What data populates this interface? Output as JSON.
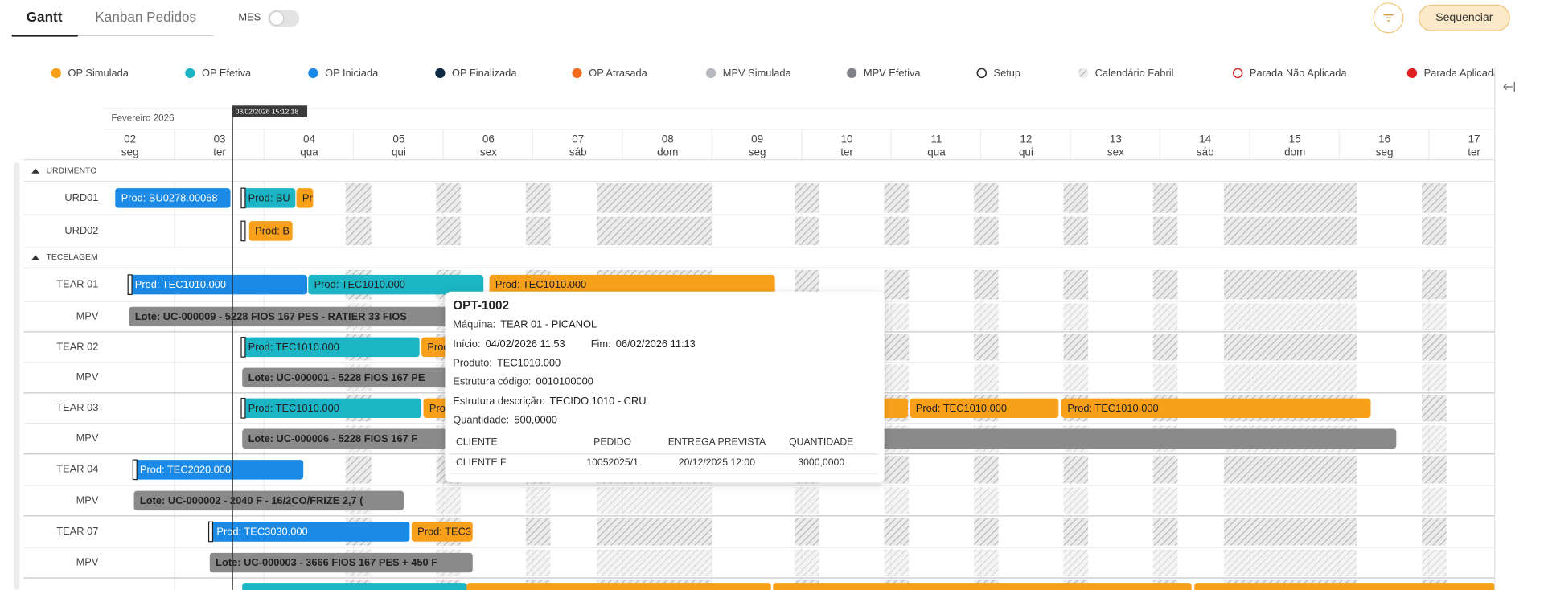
{
  "tabs": [
    "Gantt",
    "Kanban Pedidos"
  ],
  "toggle_label": "MES",
  "action_button": "Sequenciar",
  "legend": [
    {
      "label": "OP Simulada",
      "color": "#f9a01b"
    },
    {
      "label": "OP Efetiva",
      "color": "#1bb5c5"
    },
    {
      "label": "OP Iniciada",
      "color": "#1a8ae6"
    },
    {
      "label": "OP Finalizada",
      "color": "#0d2b45"
    },
    {
      "label": "OP Atrasada",
      "color": "#f26a1b"
    },
    {
      "label": "MPV Simulada",
      "color": "#b5b8bd"
    },
    {
      "label": "MPV Efetiva",
      "color": "#7f8286"
    },
    {
      "label": "Setup",
      "color": "#333333",
      "style": "ring"
    },
    {
      "label": "Calendário Fabril",
      "color": "#bdbdbd",
      "style": "hatch"
    },
    {
      "label": "Parada Não Aplicada",
      "color": "#d32f2f",
      "style": "ring"
    },
    {
      "label": "Parada Aplicada",
      "color": "#e02020"
    }
  ],
  "timeline": {
    "month": "Fevereiro 2026",
    "now": "03/02/2026 15:12:18",
    "days": [
      {
        "day": "02",
        "weekday": "seg"
      },
      {
        "day": "03",
        "weekday": "ter"
      },
      {
        "day": "04",
        "weekday": "qua"
      },
      {
        "day": "05",
        "weekday": "qui"
      },
      {
        "day": "06",
        "weekday": "sex"
      },
      {
        "day": "07",
        "weekday": "sáb"
      },
      {
        "day": "08",
        "weekday": "dom"
      },
      {
        "day": "09",
        "weekday": "seg"
      },
      {
        "day": "10",
        "weekday": "ter"
      },
      {
        "day": "11",
        "weekday": "qua"
      },
      {
        "day": "12",
        "weekday": "qui"
      },
      {
        "day": "13",
        "weekday": "sex"
      },
      {
        "day": "14",
        "weekday": "sáb"
      },
      {
        "day": "15",
        "weekday": "dom"
      },
      {
        "day": "16",
        "weekday": "seg"
      },
      {
        "day": "17",
        "weekday": "ter"
      }
    ]
  },
  "groups": [
    {
      "name": "URDIMENTO",
      "rows": [
        {
          "label": "URD01",
          "bars": [
            {
              "text": "Prod: BU0278.00068",
              "color": "#1a8ae6"
            },
            {
              "text": "Prod: BU",
              "color": "#1bb5c5"
            },
            {
              "text": "Pr",
              "color": "#f9a01b"
            }
          ]
        },
        {
          "label": "URD02",
          "bars": [
            {
              "text": "Prod: B",
              "color": "#f9a01b"
            }
          ]
        }
      ]
    },
    {
      "name": "TECELAGEM",
      "rows": [
        {
          "label": "TEAR 01",
          "bars": [
            {
              "text": "Prod: TEC1010.000",
              "color": "#1a8ae6"
            },
            {
              "text": "Prod: TEC1010.000",
              "color": "#1bb5c5"
            },
            {
              "text": "Prod: TEC1010.000",
              "color": "#f9a01b"
            }
          ]
        },
        {
          "label": "MPV",
          "bars": [
            {
              "text": "Lote: UC-000009 - 5228 FIOS 167 PES - RATIER 33 FIOS",
              "color": "#8a8a8a"
            }
          ]
        },
        {
          "label": "TEAR 02",
          "bars": [
            {
              "text": "Prod: TEC1010.000",
              "color": "#1bb5c5"
            },
            {
              "text": "Prod",
              "color": "#f9a01b"
            }
          ]
        },
        {
          "label": "MPV",
          "bars": [
            {
              "text": "Lote: UC-000001 - 5228 FIOS 167 PE",
              "color": "#8a8a8a"
            }
          ]
        },
        {
          "label": "TEAR 03",
          "bars": [
            {
              "text": "Prod: TEC1010.000",
              "color": "#1bb5c5"
            },
            {
              "text": "Pro",
              "color": "#f9a01b"
            },
            {
              "text": "Prod: TEC1010.000",
              "color": "#f9a01b"
            },
            {
              "text": "Prod: TEC1010.000",
              "color": "#f9a01b"
            }
          ]
        },
        {
          "label": "MPV",
          "bars": [
            {
              "text": "Lote: UC-000006 - 5228 FIOS 167 F",
              "color": "#8a8a8a"
            }
          ]
        },
        {
          "label": "TEAR 04",
          "bars": [
            {
              "text": "Prod: TEC2020.000",
              "color": "#1a8ae6"
            }
          ]
        },
        {
          "label": "MPV",
          "bars": [
            {
              "text": "Lote: UC-000002 - 2040 F - 16/2CO/FRIZE 2,7 (",
              "color": "#8a8a8a"
            }
          ]
        },
        {
          "label": "TEAR 07",
          "bars": [
            {
              "text": "Prod: TEC3030.000",
              "color": "#1a8ae6"
            },
            {
              "text": "Prod: TEC3",
              "color": "#f9a01b"
            }
          ]
        },
        {
          "label": "MPV",
          "bars": [
            {
              "text": "Lote: UC-000003 - 3666 FIOS 167 PES + 450 F",
              "color": "#8a8a8a"
            }
          ]
        }
      ]
    }
  ],
  "tooltip": {
    "title": "OPT-1002",
    "fields": [
      {
        "label": "Máquina:",
        "value": "TEAR 01 - PICANOL"
      },
      {
        "label": "Início:",
        "value": "04/02/2026 11:53"
      },
      {
        "label": "Fim:",
        "value": "06/02/2026 11:13"
      },
      {
        "label": "Produto:",
        "value": "TEC1010.000"
      },
      {
        "label": "Estrutura código:",
        "value": "0010100000"
      },
      {
        "label": "Estrutura descrição:",
        "value": "TECIDO 1010 - CRU"
      },
      {
        "label": "Quantidade:",
        "value": "500,0000"
      }
    ],
    "table": {
      "headers": [
        "CLIENTE",
        "PEDIDO",
        "ENTREGA PREVISTA",
        "QUANTIDADE"
      ],
      "rows": [
        [
          "CLIENTE F",
          "10052025/1",
          "20/12/2025 12:00",
          "3000,0000"
        ]
      ]
    }
  }
}
